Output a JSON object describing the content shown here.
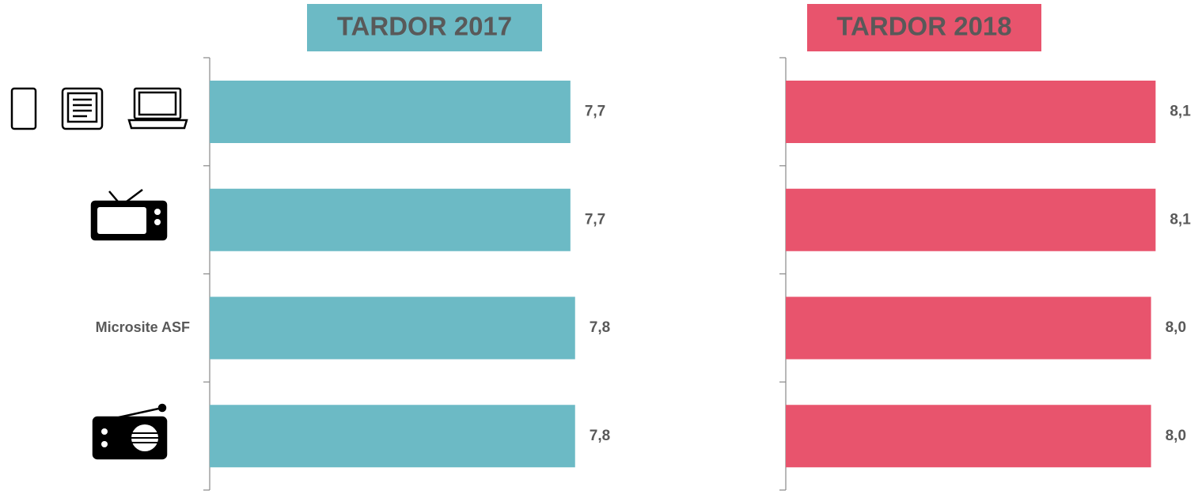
{
  "chart_data": [
    {
      "type": "bar",
      "orientation": "horizontal",
      "title": "TARDOR 2017",
      "categories": [
        null,
        null,
        "Microsite ASF",
        null
      ],
      "values": [
        7.7,
        7.7,
        7.8,
        7.8
      ],
      "value_labels": [
        "7,7",
        "7,7",
        "7,8",
        "7,8"
      ],
      "color": "#6cbac5",
      "xlim": [
        0,
        10
      ]
    },
    {
      "type": "bar",
      "orientation": "horizontal",
      "title": "TARDOR 2018",
      "values": [
        8.1,
        8.1,
        8.0,
        8.0
      ],
      "value_labels": [
        "8,1",
        "8,1",
        "8,0",
        "8,0"
      ],
      "color": "#e8546d",
      "xlim": [
        0,
        10
      ]
    }
  ]
}
